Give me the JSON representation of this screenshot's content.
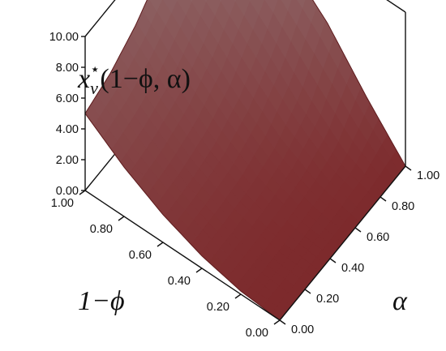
{
  "chart_data": {
    "type": "surface",
    "z_label": "x_v*(1−ϕ, α)",
    "z_label_parts": {
      "base": "x",
      "sub": "v",
      "sup": "⋆",
      "args": "(1−ϕ,  α)"
    },
    "x_label": "1−ϕ",
    "y_label": "α",
    "x_ticks": [
      "1.00",
      "0.80",
      "0.60",
      "0.40",
      "0.20",
      "0.00"
    ],
    "y_ticks": [
      "0.00",
      "0.20",
      "0.40",
      "0.60",
      "0.80",
      "1.00"
    ],
    "z_ticks": [
      "0.00",
      "2.00",
      "4.00",
      "6.00",
      "8.00",
      "10.00"
    ],
    "x_range": [
      0,
      1
    ],
    "y_range": [
      0,
      1
    ],
    "z_range": [
      0,
      10
    ],
    "surface": {
      "grid_x": [
        0,
        0.2,
        0.4,
        0.6,
        0.8,
        1.0
      ],
      "grid_y": [
        0,
        0.2,
        0.4,
        0.6,
        0.8,
        1.0
      ],
      "z": [
        [
          0.0,
          0.0,
          0.0,
          0.0,
          0.0,
          0.0
        ],
        [
          0.2,
          0.2,
          0.3,
          0.5,
          1.0,
          2.8
        ],
        [
          0.8,
          0.9,
          1.1,
          1.7,
          3.1,
          5.9
        ],
        [
          1.8,
          2.0,
          2.5,
          3.6,
          5.6,
          8.2
        ],
        [
          3.2,
          3.6,
          4.4,
          5.9,
          7.9,
          9.5
        ],
        [
          5.0,
          5.6,
          6.7,
          8.3,
          9.5,
          9.9
        ]
      ]
    },
    "colors": {
      "surface_low": "#7d2a2c",
      "surface_high": "#927677",
      "edge": "#5e1c1e",
      "axes": "#111111"
    }
  }
}
